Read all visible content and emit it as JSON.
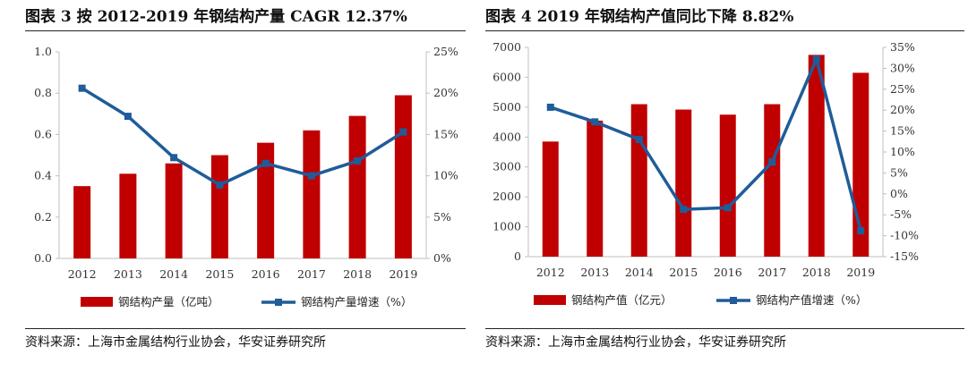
{
  "left": {
    "title": "图表 3 按 2012-2019 年钢结构产量 CAGR 12.37%",
    "source": "资料来源：上海市金属结构行业协会，华安证券研究所",
    "legend_bar": "钢结构产量（亿吨）",
    "legend_line": "钢结构产量增速（%）"
  },
  "right": {
    "title": "图表 4 2019 年钢结构产值同比下降 8.82%",
    "source": "资料来源：上海市金属结构行业协会，华安证券研究所",
    "legend_bar": "钢结构产值（亿元）",
    "legend_line": "钢结构产值增速（%）"
  },
  "colors": {
    "bar": "#c00000",
    "line": "#1f5c99"
  },
  "chart_data": [
    {
      "type": "bar+line",
      "categories": [
        "2012",
        "2013",
        "2014",
        "2015",
        "2016",
        "2017",
        "2018",
        "2019"
      ],
      "series": [
        {
          "name": "钢结构产量（亿吨）",
          "type": "bar",
          "axis": "left",
          "values": [
            0.35,
            0.41,
            0.46,
            0.5,
            0.56,
            0.62,
            0.69,
            0.79
          ]
        },
        {
          "name": "钢结构产量增速（%）",
          "type": "line",
          "axis": "right",
          "values": [
            20.6,
            17.2,
            12.2,
            8.9,
            11.5,
            10.0,
            11.8,
            15.3
          ]
        }
      ],
      "y_left": {
        "min": 0,
        "max": 1.0,
        "ticks": [
          "0.0",
          "0.2",
          "0.4",
          "0.6",
          "0.8",
          "1.0"
        ]
      },
      "y_right": {
        "min": 0,
        "max": 25,
        "ticks": [
          "0%",
          "5%",
          "10%",
          "15%",
          "20%",
          "25%"
        ]
      },
      "legend": "bottom",
      "grid": false
    },
    {
      "type": "bar+line",
      "categories": [
        "2012",
        "2013",
        "2014",
        "2015",
        "2016",
        "2017",
        "2018",
        "2019"
      ],
      "series": [
        {
          "name": "钢结构产值（亿元）",
          "type": "bar",
          "axis": "left",
          "values": [
            3850,
            4550,
            5100,
            4920,
            4750,
            5100,
            6750,
            6150
          ]
        },
        {
          "name": "钢结构产值增速（%）",
          "type": "line",
          "axis": "right",
          "values": [
            20.7,
            17.2,
            13.0,
            -3.7,
            -3.3,
            7.6,
            32.2,
            -8.82
          ]
        }
      ],
      "y_left": {
        "min": 0,
        "max": 7000,
        "ticks": [
          "0",
          "1000",
          "2000",
          "3000",
          "4000",
          "5000",
          "6000",
          "7000"
        ]
      },
      "y_right": {
        "min": -15,
        "max": 35,
        "ticks": [
          "-15%",
          "-10%",
          "-5%",
          "0%",
          "5%",
          "10%",
          "15%",
          "20%",
          "25%",
          "30%",
          "35%"
        ]
      },
      "legend": "bottom",
      "grid": false
    }
  ]
}
